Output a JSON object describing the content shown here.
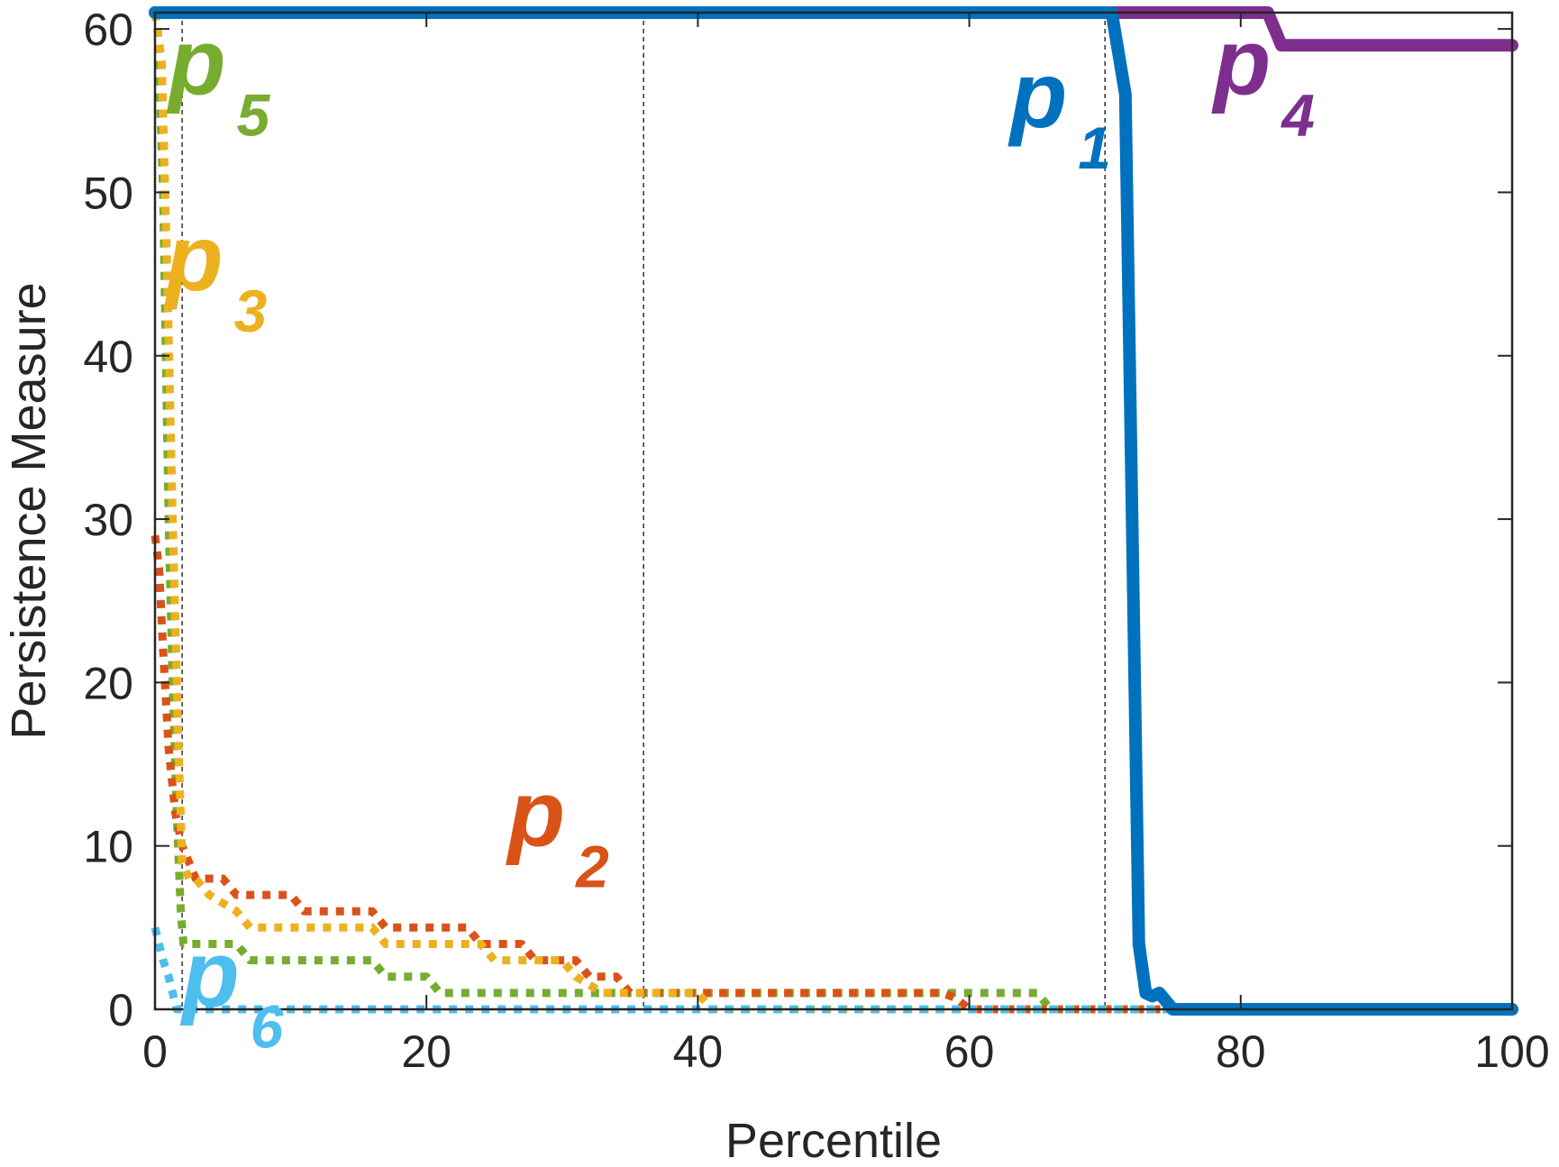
{
  "chart_data": {
    "type": "line",
    "title": "",
    "xlabel": "Percentile",
    "ylabel": "Persistence Measure",
    "xlim": [
      0,
      100
    ],
    "ylim": [
      0,
      61
    ],
    "xticks": [
      0,
      20,
      40,
      60,
      80,
      100
    ],
    "yticks": [
      0,
      10,
      20,
      30,
      40,
      50,
      60
    ],
    "grid": false,
    "vlines": [
      2,
      36,
      70
    ],
    "series": [
      {
        "name": "p",
        "subscript": "1",
        "color": "#0072BD",
        "style": "solid",
        "x": [
          0,
          70.5,
          71.5,
          72,
          72.5,
          73,
          73.5,
          74,
          75,
          100
        ],
        "y": [
          61,
          61,
          56,
          30,
          4,
          1,
          0.8,
          1,
          0,
          0
        ],
        "label_pos": [
          63,
          54
        ]
      },
      {
        "name": "p",
        "subscript": "2",
        "color": "#D95319",
        "style": "dotted",
        "x": [
          0,
          0.3,
          0.6,
          1,
          1.5,
          2,
          2.5,
          3,
          5,
          6,
          10,
          11,
          16,
          17,
          23,
          24,
          27,
          28,
          31,
          32,
          34,
          35,
          40,
          58,
          59,
          60,
          100
        ],
        "y": [
          29,
          27,
          22,
          16,
          12,
          10,
          9,
          8,
          8,
          7,
          7,
          6,
          6,
          5,
          5,
          4,
          4,
          3,
          3,
          2,
          2,
          1,
          1,
          1,
          0.7,
          0,
          0
        ],
        "label_pos": [
          26,
          10
        ]
      },
      {
        "name": "p",
        "subscript": "3",
        "color": "#EDB120",
        "style": "dotted",
        "x": [
          0,
          0.5,
          0.9,
          1.3,
          1.7,
          2,
          2.5,
          3,
          4,
          6,
          7,
          16,
          17,
          24,
          25,
          30,
          31,
          32,
          33,
          34,
          40,
          41,
          100
        ],
        "y": [
          61,
          58,
          45,
          30,
          17,
          9,
          8,
          8,
          7,
          6,
          5,
          5,
          4,
          4,
          3,
          3,
          2,
          1.5,
          1,
          1,
          1,
          0,
          0
        ],
        "label_pos": [
          0.8,
          44
        ]
      },
      {
        "name": "p",
        "subscript": "4",
        "color": "#7E2F8E",
        "style": "solid",
        "x": [
          0,
          82,
          83,
          100
        ],
        "y": [
          61,
          61,
          59,
          59
        ],
        "label_pos": [
          78,
          56
        ]
      },
      {
        "name": "p",
        "subscript": "5",
        "color": "#77AC30",
        "style": "dotted",
        "x": [
          0,
          0.2,
          0.6,
          1,
          1.3,
          1.6,
          1.9,
          2.1,
          2.5,
          6,
          7,
          16,
          17,
          20,
          21,
          32,
          33,
          65,
          66,
          100
        ],
        "y": [
          61,
          60,
          50,
          30,
          20,
          12,
          6,
          4,
          4,
          4,
          3,
          3,
          2,
          2,
          1,
          1,
          1,
          1,
          0,
          0
        ],
        "label_pos": [
          1,
          56
        ]
      },
      {
        "name": "p",
        "subscript": "6",
        "color": "#4DBEEE",
        "style": "dotted",
        "x": [
          0,
          0.3,
          0.6,
          1,
          1.3,
          1.6,
          100
        ],
        "y": [
          5,
          4,
          3,
          2,
          1,
          0,
          0
        ],
        "label_pos": [
          2,
          0.2
        ]
      }
    ]
  }
}
